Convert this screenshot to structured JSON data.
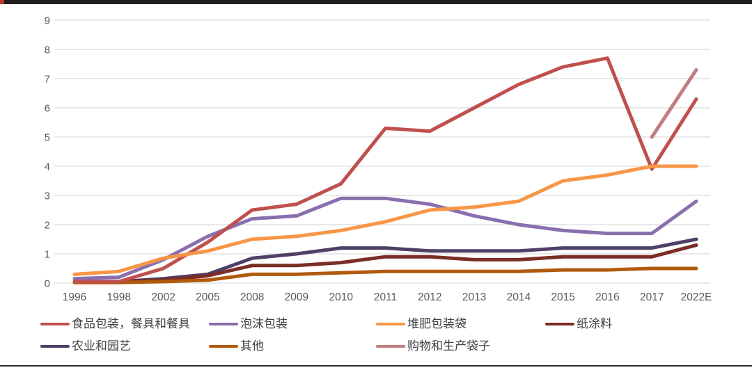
{
  "chart_data": {
    "type": "line",
    "title": "",
    "xlabel": "",
    "ylabel": "",
    "categories": [
      "1996",
      "1998",
      "2002",
      "2005",
      "2008",
      "2009",
      "2010",
      "2011",
      "2012",
      "2013",
      "2014",
      "2015",
      "2016",
      "2017",
      "2022E"
    ],
    "yticks": [
      0,
      1,
      2,
      3,
      4,
      5,
      6,
      7,
      8,
      9
    ],
    "ylim": [
      0,
      9
    ],
    "grid": "horizontal",
    "legend_position": "bottom",
    "series": [
      {
        "id": "food-packaging-tableware",
        "name": "食品包装，餐具和餐具",
        "color": "#c0504d",
        "values": [
          0.05,
          0.05,
          0.5,
          1.4,
          2.5,
          2.7,
          3.4,
          5.3,
          5.2,
          6.0,
          6.8,
          7.4,
          7.7,
          3.9,
          6.3
        ]
      },
      {
        "id": "foam-packaging",
        "name": "泡沫包装",
        "color": "#8a6fae",
        "values": [
          0.15,
          0.2,
          0.8,
          1.6,
          2.2,
          2.3,
          2.9,
          2.9,
          2.7,
          2.3,
          2.0,
          1.8,
          1.7,
          1.7,
          2.8
        ]
      },
      {
        "id": "compostable-packaging-bags",
        "name": "堆肥包装袋",
        "color": "#f79646",
        "values": [
          0.3,
          0.4,
          0.85,
          1.1,
          1.5,
          1.6,
          1.8,
          2.1,
          2.5,
          2.6,
          2.8,
          3.5,
          3.7,
          4.0,
          4.0
        ]
      },
      {
        "id": "paper-coating",
        "name": "纸涂料",
        "color": "#7b2d26",
        "values": [
          0.05,
          0.05,
          0.1,
          0.25,
          0.6,
          0.6,
          0.7,
          0.9,
          0.9,
          0.8,
          0.8,
          0.9,
          0.9,
          0.9,
          1.3
        ]
      },
      {
        "id": "agriculture-horticulture",
        "name": "农业和园艺",
        "color": "#4f4066",
        "values": [
          0.05,
          0.05,
          0.15,
          0.3,
          0.85,
          1.0,
          1.2,
          1.2,
          1.1,
          1.1,
          1.1,
          1.2,
          1.2,
          1.2,
          1.5
        ]
      },
      {
        "id": "other",
        "name": "其他",
        "color": "#b05a0e",
        "values": [
          0.02,
          0.02,
          0.05,
          0.1,
          0.3,
          0.3,
          0.35,
          0.4,
          0.4,
          0.4,
          0.4,
          0.45,
          0.45,
          0.5,
          0.5
        ]
      },
      {
        "id": "shopping-production-bags",
        "name": "购物和生产袋子",
        "color": "#c17d7f",
        "values": [
          null,
          null,
          null,
          null,
          null,
          null,
          null,
          null,
          null,
          null,
          null,
          null,
          null,
          5.0,
          7.3
        ]
      }
    ],
    "legend_rows": [
      [
        0,
        1,
        2,
        3
      ],
      [
        4,
        5,
        6
      ]
    ],
    "draw_order": [
      4,
      3,
      5,
      1,
      0,
      2,
      6
    ]
  },
  "frame": {
    "top_bar_color": "#1f1f1f",
    "top_bar_accent_color": "#c0392b",
    "bottom_line_color": "#2b2b2b",
    "grid_color": "#dcdcdc",
    "tick_label_color": "#595959",
    "legend_text_color": "#404040",
    "background": "#ffffff"
  }
}
